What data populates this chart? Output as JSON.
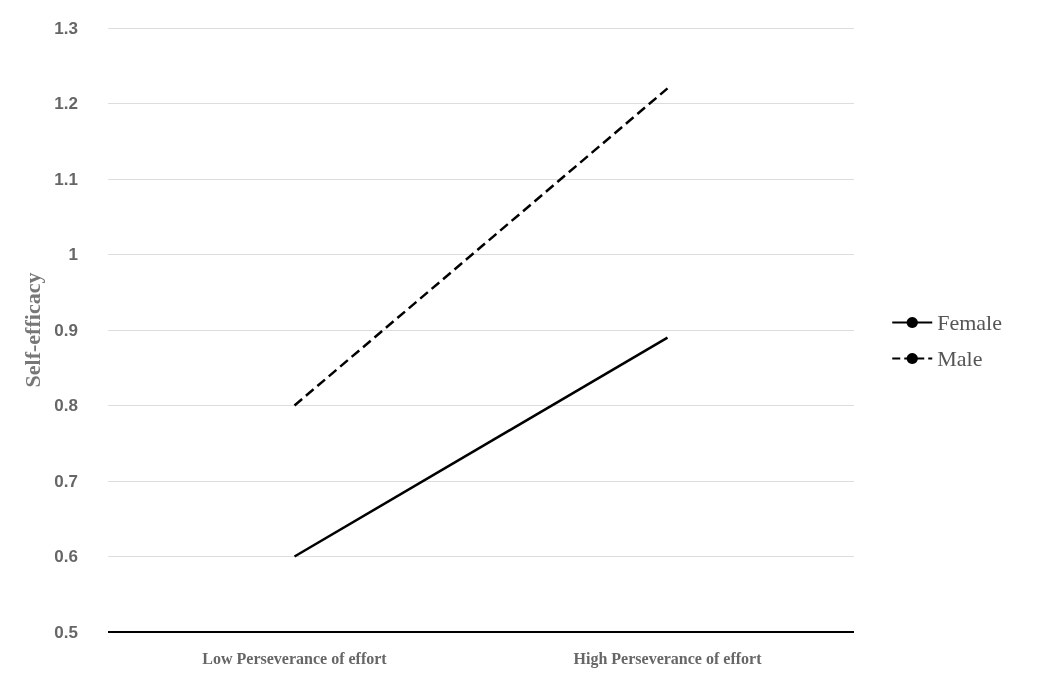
{
  "chart_data": {
    "type": "line",
    "ylabel": "Self-efficacy",
    "categories": [
      "Low Perseverance of effort",
      "High Perseverance of effort"
    ],
    "series": [
      {
        "name": "Female",
        "color": "#000000",
        "values": [
          0.6,
          0.89
        ],
        "line_style": "solid"
      },
      {
        "name": "Male",
        "color": "#000000",
        "values": [
          0.8,
          1.22
        ],
        "line_style": "dashed"
      }
    ],
    "ylim": [
      0.5,
      1.3
    ],
    "yticks": [
      0.5,
      0.6,
      0.7,
      0.8,
      0.9,
      1,
      1.1,
      1.2,
      1.3
    ],
    "grid": "y",
    "legend": "right",
    "marker": "none"
  }
}
